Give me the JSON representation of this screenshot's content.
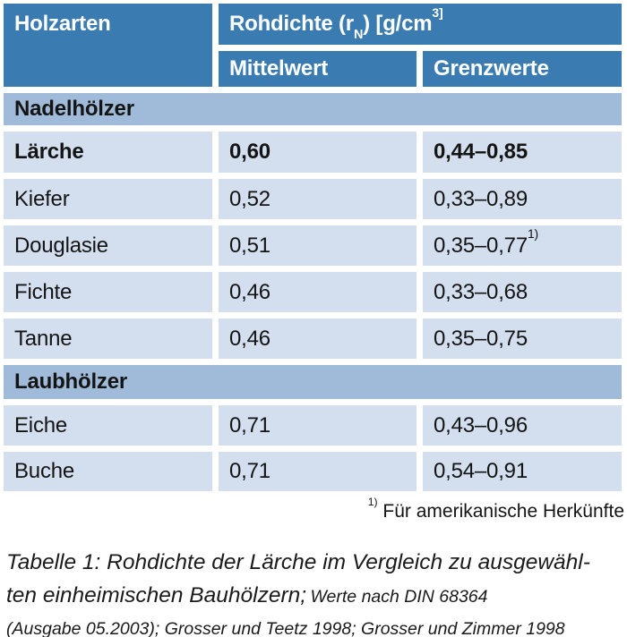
{
  "colors": {
    "header_blue": "#3a7cb2",
    "section_blue": "#a0bbd9",
    "row_blue": "#d3deee",
    "header_text": "#ffffff",
    "body_text": "#141414"
  },
  "table": {
    "header": {
      "holzarten": "Holzarten",
      "rohdichte": {
        "pre": "Rohdichte (r",
        "sub": "N",
        "mid": ") [g/cm",
        "sup": "3]"
      },
      "mittelwert": "Mittelwert",
      "grenzwerte": "Grenzwerte"
    },
    "sections": [
      {
        "label": "Nadelhölzer",
        "rows": [
          {
            "name": "Lärche",
            "mittelwert": "0,60",
            "grenzwerte": "0,44–0,85",
            "sup": ""
          },
          {
            "name": "Kiefer",
            "mittelwert": "0,52",
            "grenzwerte": "0,33–0,89",
            "sup": ""
          },
          {
            "name": "Douglasie",
            "mittelwert": "0,51",
            "grenzwerte": "0,35–0,77",
            "sup": "1)"
          },
          {
            "name": "Fichte",
            "mittelwert": "0,46",
            "grenzwerte": "0,33–0,68",
            "sup": ""
          },
          {
            "name": "Tanne",
            "mittelwert": "0,46",
            "grenzwerte": "0,35–0,75",
            "sup": ""
          }
        ]
      },
      {
        "label": "Laubhölzer",
        "rows": [
          {
            "name": "Eiche",
            "mittelwert": "0,71",
            "grenzwerte": "0,43–0,96",
            "sup": ""
          },
          {
            "name": "Buche",
            "mittelwert": "0,71",
            "grenzwerte": "0,54–0,91",
            "sup": ""
          }
        ]
      }
    ]
  },
  "footnote": {
    "marker": "1)",
    "text": "Für amerikanische Herkünfte"
  },
  "caption": {
    "big_line1": "Tabelle 1: Rohdichte der Lärche im Vergleich zu ausgewähl-",
    "big_line2": "ten einheimischen Bauhölzern;",
    "small_inline": "Werte nach DIN 68364",
    "small_line3": "(Ausgabe 05.2003); Grosser und Teetz 1998; Grosser und Zimmer 1998"
  }
}
